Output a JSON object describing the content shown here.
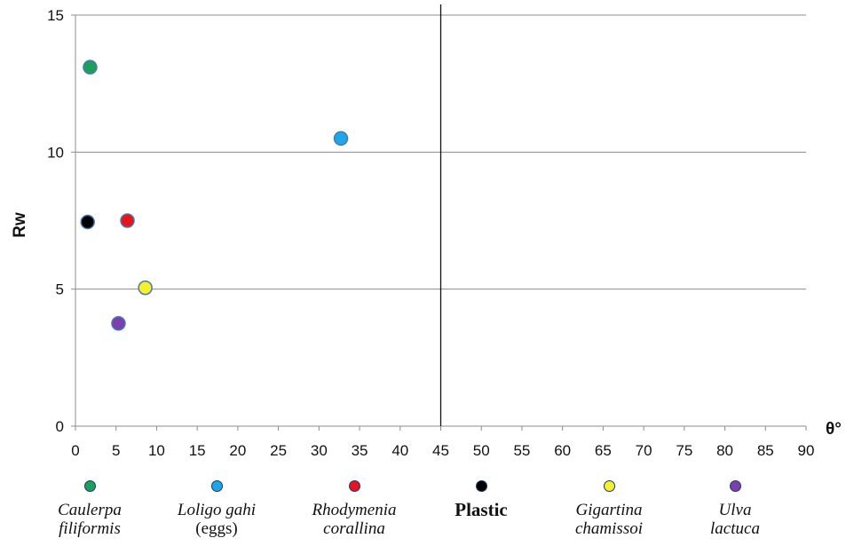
{
  "chart_data": {
    "type": "scatter",
    "title": "",
    "xlabel": "θ°",
    "ylabel": "Rw",
    "xlim": [
      0,
      90
    ],
    "ylim": [
      0,
      15
    ],
    "xticks": [
      0,
      5,
      10,
      15,
      20,
      25,
      30,
      35,
      40,
      45,
      50,
      55,
      60,
      65,
      70,
      75,
      80,
      85,
      90
    ],
    "yticks": [
      0,
      5,
      10,
      15
    ],
    "grid": "horizontal",
    "reference_line_x": 45,
    "legend_position": "bottom",
    "series": [
      {
        "label_lines": [
          "Caulerpa",
          "filiformis"
        ],
        "label_style": "italic",
        "color": "#1aa05a",
        "x": 1.8,
        "y": 13.1
      },
      {
        "label_lines": [
          "Loligo gahi",
          "(eggs)"
        ],
        "label_style": "italic",
        "color": "#1ea7e8",
        "x": 32.7,
        "y": 10.5
      },
      {
        "label_lines": [
          "Rhodymenia",
          "corallina"
        ],
        "label_style": "italic",
        "color": "#e8141c",
        "x": 6.4,
        "y": 7.5
      },
      {
        "label_lines": [
          "Plastic"
        ],
        "label_style": "bold",
        "color": "#000000",
        "x": 1.5,
        "y": 7.45
      },
      {
        "label_lines": [
          "Gigartina",
          "chamissoi"
        ],
        "label_style": "italic",
        "color": "#f5f02a",
        "x": 8.6,
        "y": 5.05
      },
      {
        "label_lines": [
          "Ulva",
          "lactuca"
        ],
        "label_style": "italic",
        "color": "#7b3fb0",
        "x": 5.3,
        "y": 3.75
      }
    ]
  }
}
